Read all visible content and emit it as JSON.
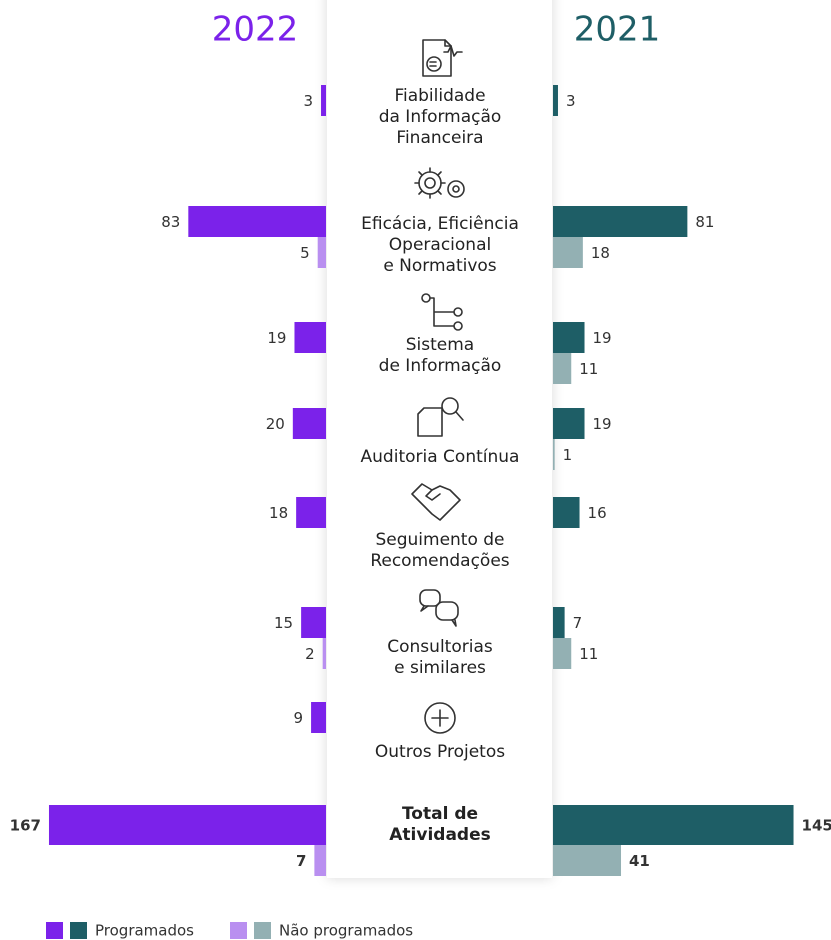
{
  "chart_data": {
    "type": "butterfly-bar",
    "categories": [
      [
        "Fiabilidade",
        "da Informação",
        "Financeira"
      ],
      [
        "Eficácia, Eficiência",
        "Operacional",
        "e Normativos"
      ],
      [
        "Sistema",
        "de Informação"
      ],
      [
        "Auditoria Contínua"
      ],
      [
        "Seguimento de",
        "Recomendações"
      ],
      [
        "Consultorias",
        "e similares"
      ],
      [
        "Outros Projetos"
      ],
      [
        "Total de",
        "Atividades"
      ]
    ],
    "legend": [
      "Programados",
      "Não programados"
    ],
    "xlim": [
      0,
      170
    ],
    "panels": [
      {
        "title": "2022",
        "color": "#7b22ea",
        "side": "left",
        "series": [
          {
            "legend": 0,
            "color": "#7b22ea",
            "values": [
              3,
              83,
              19,
              20,
              18,
              15,
              9,
              167
            ]
          },
          {
            "legend": 1,
            "color": "#b98ff0",
            "values": [
              null,
              5,
              null,
              null,
              null,
              2,
              null,
              7
            ]
          }
        ]
      },
      {
        "title": "2021",
        "color": "#1e5e66",
        "side": "right",
        "series": [
          {
            "legend": 0,
            "color": "#1e5e66",
            "values": [
              3,
              81,
              19,
              19,
              16,
              7,
              null,
              145
            ]
          },
          {
            "legend": 1,
            "color": "#93b0b3",
            "values": [
              null,
              18,
              11,
              1,
              null,
              11,
              null,
              41
            ]
          }
        ]
      }
    ]
  }
}
